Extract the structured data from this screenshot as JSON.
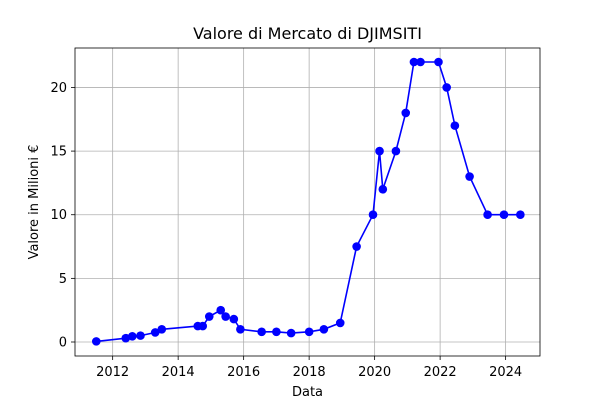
{
  "chart_data": {
    "type": "line",
    "title": "Valore di Mercato di DJIMSITI",
    "xlabel": "Data",
    "ylabel": "Valore in Milioni €",
    "xlim": [
      2010.85,
      2025.05
    ],
    "ylim": [
      -1.1,
      23.1
    ],
    "xticks": [
      2012,
      2014,
      2016,
      2018,
      2020,
      2022,
      2024
    ],
    "yticks": [
      0,
      5,
      10,
      15,
      20
    ],
    "grid": true,
    "line_color": "#0000ff",
    "marker_color": "#0000ff",
    "series": [
      {
        "x": [
          2011.5,
          2012.4,
          2012.6,
          2012.85,
          2013.3,
          2013.5,
          2014.6,
          2014.75,
          2014.95,
          2015.3,
          2015.45,
          2015.7,
          2015.9,
          2016.55,
          2017.0,
          2017.45,
          2018.0,
          2018.45,
          2018.95,
          2019.45,
          2019.95,
          2020.15,
          2020.25,
          2020.65,
          2020.95,
          2021.2,
          2021.4,
          2021.95,
          2022.2,
          2022.45,
          2022.9,
          2023.45,
          2023.95,
          2024.45
        ],
        "y": [
          0.05,
          0.3,
          0.45,
          0.5,
          0.75,
          1.0,
          1.25,
          1.25,
          2.0,
          2.5,
          2.0,
          1.8,
          1.0,
          0.8,
          0.8,
          0.7,
          0.8,
          1.0,
          1.5,
          7.5,
          10.0,
          15.0,
          12.0,
          15.0,
          18.0,
          22.0,
          22.0,
          22.0,
          20.0,
          17.0,
          13.0,
          10.0,
          10.0,
          10.0
        ]
      }
    ]
  }
}
